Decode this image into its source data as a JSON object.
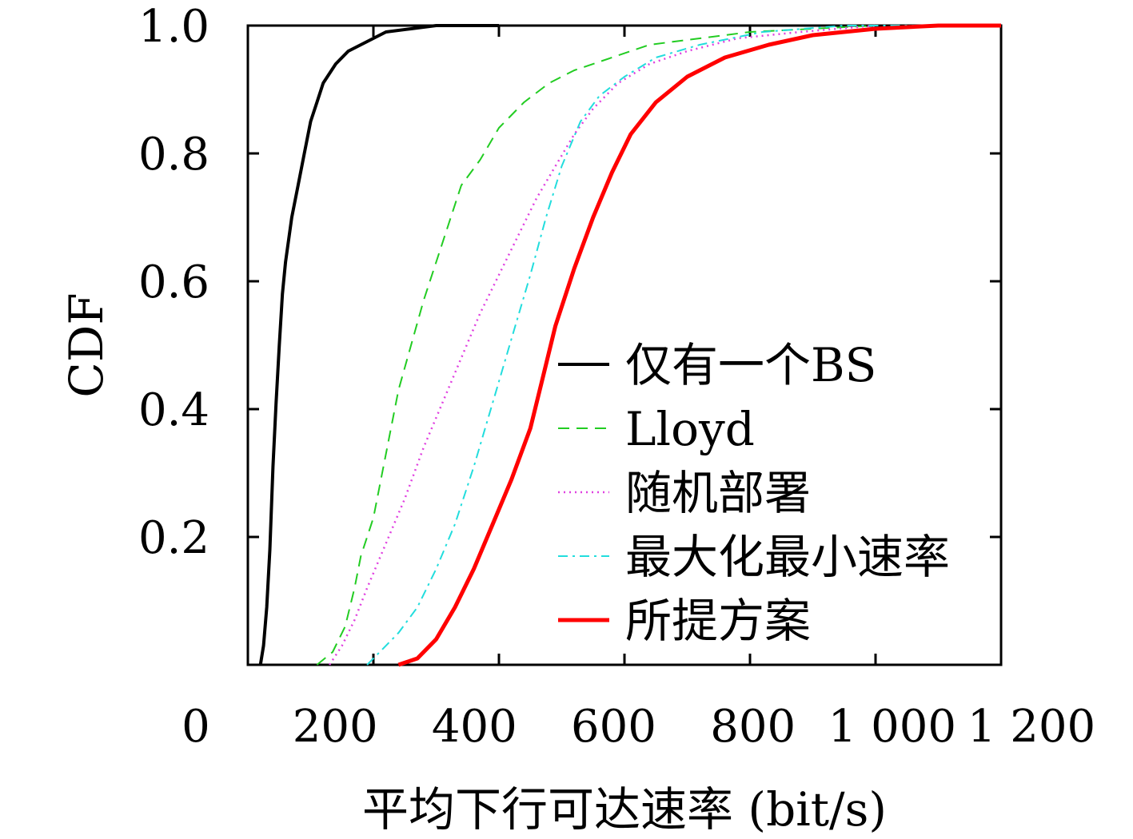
{
  "chart_data": {
    "type": "line",
    "title": "",
    "xlabel": "平均下行可达速率 (bit/s)",
    "ylabel": "CDF",
    "xlim": [
      0,
      1200
    ],
    "ylim": [
      0,
      1.0
    ],
    "x_ticks": [
      {
        "value": 0,
        "label": "0"
      },
      {
        "value": 200,
        "label": "200"
      },
      {
        "value": 400,
        "label": "400"
      },
      {
        "value": 600,
        "label": "600"
      },
      {
        "value": 800,
        "label": "800"
      },
      {
        "value": 1000,
        "label": "1 000"
      },
      {
        "value": 1200,
        "label": "1 200"
      }
    ],
    "y_ticks": [
      {
        "value": 0.2,
        "label": "0.2"
      },
      {
        "value": 0.4,
        "label": "0.4"
      },
      {
        "value": 0.6,
        "label": "0.6"
      },
      {
        "value": 0.8,
        "label": "0.8"
      },
      {
        "value": 1.0,
        "label": "1.0"
      }
    ],
    "grid": false,
    "legend_position": "center-right",
    "series": [
      {
        "name": "仅有一个BS",
        "color": "#000000",
        "dash": "solid",
        "width": 4,
        "points": [
          [
            20,
            0
          ],
          [
            25,
            0.03
          ],
          [
            30,
            0.09
          ],
          [
            35,
            0.18
          ],
          [
            40,
            0.31
          ],
          [
            45,
            0.41
          ],
          [
            50,
            0.5
          ],
          [
            55,
            0.58
          ],
          [
            60,
            0.63
          ],
          [
            70,
            0.7
          ],
          [
            80,
            0.75
          ],
          [
            90,
            0.8
          ],
          [
            100,
            0.85
          ],
          [
            110,
            0.88
          ],
          [
            120,
            0.91
          ],
          [
            140,
            0.94
          ],
          [
            160,
            0.96
          ],
          [
            180,
            0.97
          ],
          [
            200,
            0.98
          ],
          [
            220,
            0.99
          ],
          [
            260,
            0.995
          ],
          [
            300,
            1.0
          ],
          [
            400,
            1.0
          ]
        ]
      },
      {
        "name": "Lloyd",
        "color": "#22cc22",
        "dash": "14,9",
        "width": 2,
        "points": [
          [
            110,
            0
          ],
          [
            135,
            0.02
          ],
          [
            155,
            0.06
          ],
          [
            170,
            0.12
          ],
          [
            180,
            0.17
          ],
          [
            200,
            0.23
          ],
          [
            220,
            0.33
          ],
          [
            240,
            0.43
          ],
          [
            260,
            0.5
          ],
          [
            280,
            0.57
          ],
          [
            300,
            0.63
          ],
          [
            320,
            0.69
          ],
          [
            340,
            0.75
          ],
          [
            370,
            0.79
          ],
          [
            400,
            0.84
          ],
          [
            440,
            0.88
          ],
          [
            480,
            0.91
          ],
          [
            520,
            0.93
          ],
          [
            580,
            0.95
          ],
          [
            640,
            0.97
          ],
          [
            720,
            0.98
          ],
          [
            800,
            0.99
          ],
          [
            900,
            0.995
          ],
          [
            1000,
            1.0
          ]
        ]
      },
      {
        "name": "随机部署",
        "color": "#e040e0",
        "dash": "2,5",
        "width": 2.5,
        "points": [
          [
            130,
            0
          ],
          [
            150,
            0.03
          ],
          [
            170,
            0.07
          ],
          [
            190,
            0.12
          ],
          [
            220,
            0.19
          ],
          [
            250,
            0.26
          ],
          [
            280,
            0.34
          ],
          [
            310,
            0.41
          ],
          [
            340,
            0.48
          ],
          [
            370,
            0.55
          ],
          [
            400,
            0.61
          ],
          [
            430,
            0.67
          ],
          [
            460,
            0.73
          ],
          [
            490,
            0.78
          ],
          [
            520,
            0.83
          ],
          [
            550,
            0.87
          ],
          [
            590,
            0.91
          ],
          [
            640,
            0.94
          ],
          [
            700,
            0.96
          ],
          [
            780,
            0.98
          ],
          [
            880,
            0.99
          ],
          [
            1000,
            1.0
          ]
        ]
      },
      {
        "name": "最大化最小速率",
        "color": "#22dddd",
        "dash": "12,6,3,6",
        "width": 2,
        "points": [
          [
            190,
            0
          ],
          [
            210,
            0.02
          ],
          [
            240,
            0.05
          ],
          [
            270,
            0.09
          ],
          [
            300,
            0.15
          ],
          [
            330,
            0.22
          ],
          [
            360,
            0.31
          ],
          [
            390,
            0.41
          ],
          [
            420,
            0.51
          ],
          [
            450,
            0.61
          ],
          [
            475,
            0.7
          ],
          [
            500,
            0.78
          ],
          [
            530,
            0.85
          ],
          [
            560,
            0.89
          ],
          [
            600,
            0.92
          ],
          [
            650,
            0.95
          ],
          [
            720,
            0.97
          ],
          [
            820,
            0.99
          ],
          [
            950,
            1.0
          ],
          [
            1200,
            1.0
          ]
        ]
      },
      {
        "name": "所提方案",
        "color": "#ff0000",
        "dash": "solid",
        "width": 5,
        "points": [
          [
            240,
            0
          ],
          [
            270,
            0.01
          ],
          [
            300,
            0.04
          ],
          [
            330,
            0.09
          ],
          [
            360,
            0.15
          ],
          [
            390,
            0.22
          ],
          [
            420,
            0.29
          ],
          [
            450,
            0.37
          ],
          [
            470,
            0.45
          ],
          [
            490,
            0.53
          ],
          [
            520,
            0.62
          ],
          [
            550,
            0.7
          ],
          [
            580,
            0.77
          ],
          [
            610,
            0.83
          ],
          [
            650,
            0.88
          ],
          [
            700,
            0.92
          ],
          [
            760,
            0.95
          ],
          [
            830,
            0.97
          ],
          [
            900,
            0.985
          ],
          [
            1000,
            0.995
          ],
          [
            1100,
            1.0
          ],
          [
            1200,
            1.0
          ]
        ]
      }
    ]
  }
}
